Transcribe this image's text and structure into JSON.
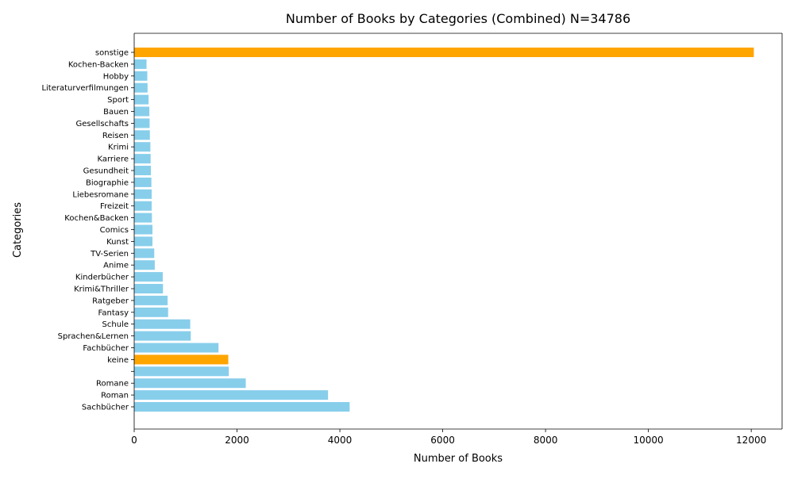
{
  "chart_data": {
    "type": "bar",
    "orientation": "horizontal",
    "title": "Number of Books by Categories (Combined) N=34786",
    "xlabel": "Number of Books",
    "ylabel": "Categories",
    "xlim": [
      0,
      12600
    ],
    "xticks": [
      0,
      2000,
      4000,
      6000,
      8000,
      10000,
      12000
    ],
    "grid": false,
    "legend": "none",
    "colors": {
      "default": "#87ceeb",
      "highlight": "#ffa500"
    },
    "bars": [
      {
        "label": "Sachbücher",
        "value": 4190,
        "highlight": false
      },
      {
        "label": "Roman",
        "value": 3770,
        "highlight": false
      },
      {
        "label": "Romane",
        "value": 2170,
        "highlight": false
      },
      {
        "label": "",
        "value": 1840,
        "highlight": false
      },
      {
        "label": "keine",
        "value": 1830,
        "highlight": true
      },
      {
        "label": "Fachbücher",
        "value": 1640,
        "highlight": false
      },
      {
        "label": "Sprachen&Lernen",
        "value": 1100,
        "highlight": false
      },
      {
        "label": "Schule",
        "value": 1090,
        "highlight": false
      },
      {
        "label": "Fantasy",
        "value": 660,
        "highlight": false
      },
      {
        "label": "Ratgeber",
        "value": 650,
        "highlight": false
      },
      {
        "label": "Krimi&Thriller",
        "value": 560,
        "highlight": false
      },
      {
        "label": "Kinderbücher",
        "value": 555,
        "highlight": false
      },
      {
        "label": "Anime",
        "value": 400,
        "highlight": false
      },
      {
        "label": "TV-Serien",
        "value": 390,
        "highlight": false
      },
      {
        "label": "Kunst",
        "value": 355,
        "highlight": false
      },
      {
        "label": "Comics",
        "value": 355,
        "highlight": false
      },
      {
        "label": "Kochen&Backen",
        "value": 345,
        "highlight": false
      },
      {
        "label": "Freizeit",
        "value": 340,
        "highlight": false
      },
      {
        "label": "Liebesromane",
        "value": 340,
        "highlight": false
      },
      {
        "label": "Biographie",
        "value": 335,
        "highlight": false
      },
      {
        "label": "Gesundheit",
        "value": 325,
        "highlight": false
      },
      {
        "label": "Karriere",
        "value": 320,
        "highlight": false
      },
      {
        "label": "Krimi",
        "value": 315,
        "highlight": false
      },
      {
        "label": "Reisen",
        "value": 305,
        "highlight": false
      },
      {
        "label": "Gesellschafts",
        "value": 300,
        "highlight": false
      },
      {
        "label": "Bauen",
        "value": 295,
        "highlight": false
      },
      {
        "label": "Sport",
        "value": 280,
        "highlight": false
      },
      {
        "label": "Literaturverfilmungen",
        "value": 260,
        "highlight": false
      },
      {
        "label": "Hobby",
        "value": 255,
        "highlight": false
      },
      {
        "label": "Kochen-Backen",
        "value": 240,
        "highlight": false
      },
      {
        "label": "sonstige",
        "value": 12050,
        "highlight": true
      }
    ]
  }
}
